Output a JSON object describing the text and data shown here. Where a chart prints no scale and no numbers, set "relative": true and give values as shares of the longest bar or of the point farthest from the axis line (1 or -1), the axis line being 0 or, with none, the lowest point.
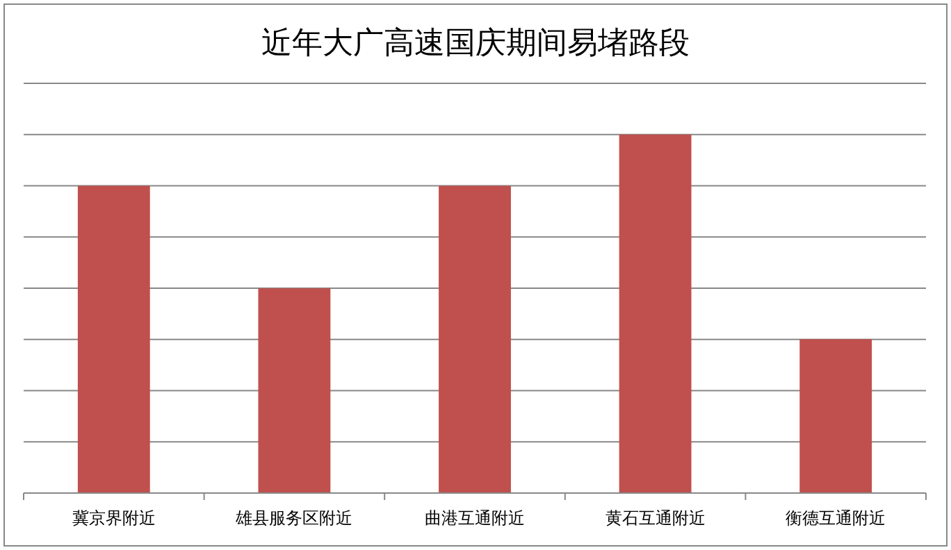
{
  "chart_data": {
    "type": "bar",
    "title": "近年大广高速国庆期间易堵路段",
    "categories": [
      "冀京界附近",
      "雄县服务区附近",
      "曲港互通附近",
      "黄石互通附近",
      "衡德互通附近"
    ],
    "values": [
      0.857,
      0.571,
      0.857,
      1,
      0.429
    ],
    "color": "#c0504d",
    "relative": true,
    "grid": "y"
  }
}
